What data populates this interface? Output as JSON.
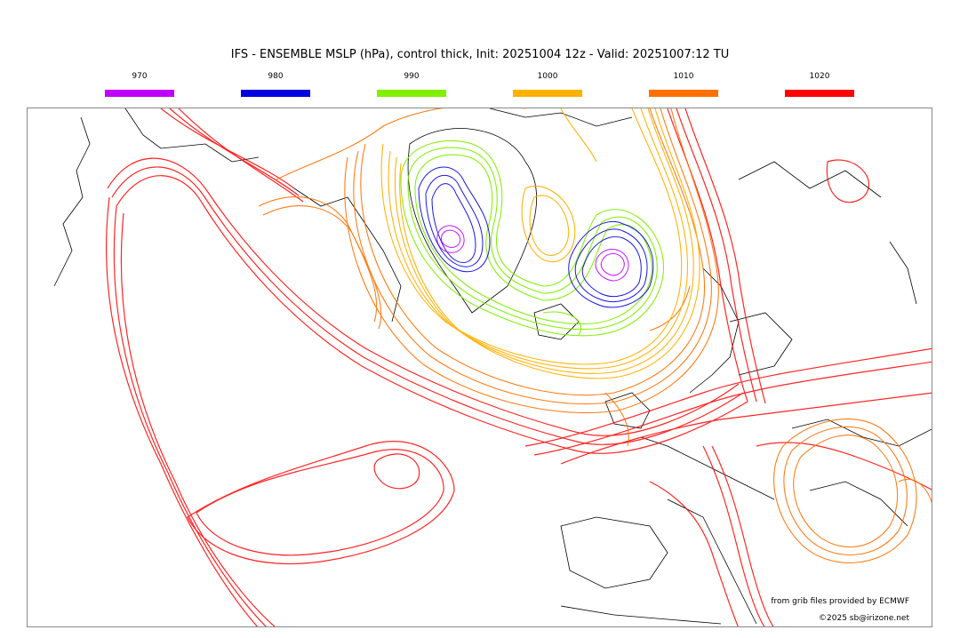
{
  "title": "IFS - ENSEMBLE MSLP (hPa), control thick, Init: 20251004 12z - Valid: 20251007:12 TU",
  "legend": [
    {
      "label": "970",
      "color": "#c000ff"
    },
    {
      "label": "980",
      "color": "#0000e0"
    },
    {
      "label": "990",
      "color": "#80f000"
    },
    {
      "label": "1000",
      "color": "#ffb000"
    },
    {
      "label": "1010",
      "color": "#ff7000"
    },
    {
      "label": "1020",
      "color": "#ff0000"
    }
  ],
  "credits": {
    "source": "from grib files provided by ECMWF",
    "copyright": "©2025 sb@irizone.net"
  }
}
